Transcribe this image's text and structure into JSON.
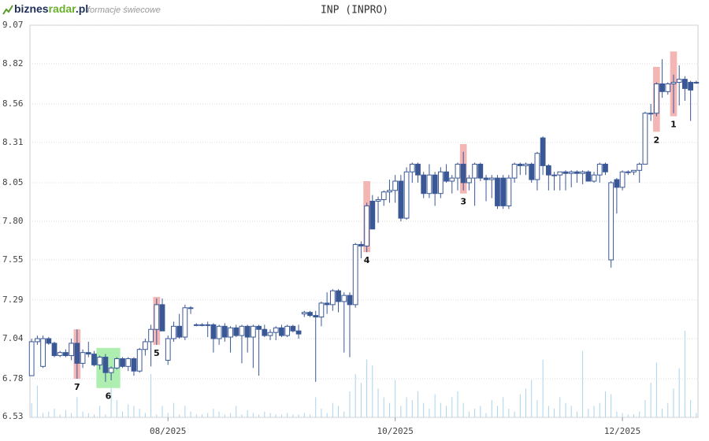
{
  "header": {
    "logo": [
      "biznes",
      "radar",
      ".pl"
    ],
    "subtitle": "formacje świecowe"
  },
  "chart_data": {
    "type": "candlestick",
    "title": "INP (INPRO)",
    "ylim": [
      6.53,
      9.07
    ],
    "yticks": [
      6.53,
      6.78,
      7.04,
      7.29,
      7.55,
      {
        "value": 7.8,
        "label": "7.80"
      },
      8.05,
      8.31,
      8.56,
      8.82,
      9.07
    ],
    "grid": true,
    "xlim": [
      -0.3,
      117.3
    ],
    "xticks": [
      {
        "value": 24,
        "label": "08/2025"
      },
      {
        "value": 64,
        "label": "10/2025"
      },
      {
        "value": 104,
        "label": "12/2025"
      }
    ],
    "colors": {
      "candle": "#3a5896",
      "volume": "#a9d3ee",
      "bear_pattern": "#f4b5b5",
      "bull_pattern": "#aeeeb0"
    },
    "candles": [
      {
        "o": 6.8,
        "h": 7.04,
        "l": 6.8,
        "c": 7.02
      },
      {
        "o": 7.02,
        "h": 7.06,
        "l": 7.0,
        "c": 7.04
      },
      {
        "o": 6.86,
        "h": 7.06,
        "l": 6.85,
        "c": 7.04
      },
      {
        "o": 7.04,
        "h": 7.05,
        "l": 7.0,
        "c": 7.01
      },
      {
        "o": 7.01,
        "h": 7.02,
        "l": 6.92,
        "c": 6.93
      },
      {
        "o": 6.93,
        "h": 6.96,
        "l": 6.92,
        "c": 6.95
      },
      {
        "o": 6.95,
        "h": 6.97,
        "l": 6.92,
        "c": 6.93
      },
      {
        "o": 6.93,
        "h": 7.04,
        "l": 6.9,
        "c": 7.01
      },
      {
        "o": 7.01,
        "h": 7.1,
        "l": 6.78,
        "c": 6.88
      },
      {
        "o": 6.88,
        "h": 6.97,
        "l": 6.85,
        "c": 6.95
      },
      {
        "o": 6.95,
        "h": 7.02,
        "l": 6.92,
        "c": 6.94
      },
      {
        "o": 6.94,
        "h": 6.96,
        "l": 6.86,
        "c": 6.87
      },
      {
        "o": 6.87,
        "h": 6.93,
        "l": 6.84,
        "c": 6.92
      },
      {
        "o": 6.92,
        "h": 6.94,
        "l": 6.76,
        "c": 6.82
      },
      {
        "o": 6.82,
        "h": 6.86,
        "l": 6.77,
        "c": 6.85
      },
      {
        "o": 6.85,
        "h": 6.92,
        "l": 6.84,
        "c": 6.91
      },
      {
        "o": 6.91,
        "h": 6.92,
        "l": 6.85,
        "c": 6.86
      },
      {
        "o": 6.86,
        "h": 6.92,
        "l": 6.83,
        "c": 6.91
      },
      {
        "o": 6.91,
        "h": 6.92,
        "l": 6.8,
        "c": 6.83
      },
      {
        "o": 6.83,
        "h": 6.98,
        "l": 6.82,
        "c": 6.97
      },
      {
        "o": 6.97,
        "h": 7.04,
        "l": 6.93,
        "c": 7.02
      },
      {
        "o": 7.02,
        "h": 7.13,
        "l": 6.86,
        "c": 7.1
      },
      {
        "o": 7.1,
        "h": 7.3,
        "l": 7.0,
        "c": 7.26
      },
      {
        "o": 7.26,
        "h": 7.3,
        "l": 7.09,
        "c": 7.09
      },
      {
        "o": 6.9,
        "h": 7.06,
        "l": 6.87,
        "c": 7.04
      },
      {
        "o": 7.04,
        "h": 7.15,
        "l": 7.02,
        "c": 7.12
      },
      {
        "o": 7.12,
        "h": 7.2,
        "l": 7.04,
        "c": 7.05
      },
      {
        "o": 7.05,
        "h": 7.26,
        "l": 7.03,
        "c": 7.24
      },
      {
        "o": 7.24,
        "h": 7.25,
        "l": 7.2,
        "c": 7.24
      },
      {
        "o": 7.13,
        "h": 7.14,
        "l": 7.12,
        "c": 7.13
      },
      {
        "o": 7.13,
        "h": 7.14,
        "l": 7.12,
        "c": 7.13
      },
      {
        "o": 7.13,
        "h": 7.15,
        "l": 7.05,
        "c": 7.13
      },
      {
        "o": 7.13,
        "h": 7.14,
        "l": 6.95,
        "c": 7.04
      },
      {
        "o": 7.04,
        "h": 7.13,
        "l": 7.0,
        "c": 7.12
      },
      {
        "o": 7.12,
        "h": 7.14,
        "l": 7.02,
        "c": 7.05
      },
      {
        "o": 7.05,
        "h": 7.12,
        "l": 6.95,
        "c": 7.11
      },
      {
        "o": 7.11,
        "h": 7.13,
        "l": 7.05,
        "c": 7.06
      },
      {
        "o": 7.06,
        "h": 7.13,
        "l": 6.88,
        "c": 7.12
      },
      {
        "o": 7.12,
        "h": 7.13,
        "l": 6.95,
        "c": 7.05
      },
      {
        "o": 7.05,
        "h": 7.13,
        "l": 6.85,
        "c": 7.12
      },
      {
        "o": 7.12,
        "h": 7.13,
        "l": 6.8,
        "c": 7.1
      },
      {
        "o": 7.1,
        "h": 7.13,
        "l": 7.05,
        "c": 7.06
      },
      {
        "o": 7.06,
        "h": 7.1,
        "l": 7.03,
        "c": 7.08
      },
      {
        "o": 7.08,
        "h": 7.12,
        "l": 7.03,
        "c": 7.11
      },
      {
        "o": 7.11,
        "h": 7.13,
        "l": 7.05,
        "c": 7.06
      },
      {
        "o": 7.06,
        "h": 7.13,
        "l": 7.05,
        "c": 7.12
      },
      {
        "o": 7.12,
        "h": 7.13,
        "l": 7.08,
        "c": 7.09
      },
      {
        "o": 7.09,
        "h": 7.13,
        "l": 7.04,
        "c": 7.07
      },
      {
        "o": 7.2,
        "h": 7.22,
        "l": 7.18,
        "c": 7.21
      },
      {
        "o": 7.21,
        "h": 7.22,
        "l": 7.18,
        "c": 7.19
      },
      {
        "o": 7.19,
        "h": 7.22,
        "l": 6.76,
        "c": 7.18
      },
      {
        "o": 7.18,
        "h": 7.28,
        "l": 7.12,
        "c": 7.27
      },
      {
        "o": 7.27,
        "h": 7.34,
        "l": 7.2,
        "c": 7.26
      },
      {
        "o": 7.26,
        "h": 7.36,
        "l": 7.22,
        "c": 7.35
      },
      {
        "o": 7.35,
        "h": 7.36,
        "l": 7.21,
        "c": 7.28
      },
      {
        "o": 7.28,
        "h": 7.34,
        "l": 6.95,
        "c": 7.32
      },
      {
        "o": 7.32,
        "h": 7.34,
        "l": 6.92,
        "c": 7.26
      },
      {
        "o": 7.26,
        "h": 7.66,
        "l": 7.24,
        "c": 7.65
      },
      {
        "o": 7.65,
        "h": 7.67,
        "l": 7.56,
        "c": 7.64
      },
      {
        "o": 7.64,
        "h": 7.92,
        "l": 7.6,
        "c": 7.9
      },
      {
        "o": 7.93,
        "h": 7.97,
        "l": 7.75,
        "c": 7.75
      },
      {
        "o": 7.93,
        "h": 7.96,
        "l": 7.79,
        "c": 7.94
      },
      {
        "o": 7.94,
        "h": 8.0,
        "l": 7.9,
        "c": 7.99
      },
      {
        "o": 7.99,
        "h": 8.07,
        "l": 7.92,
        "c": 8.0
      },
      {
        "o": 8.0,
        "h": 8.1,
        "l": 7.92,
        "c": 8.06
      },
      {
        "o": 8.06,
        "h": 8.1,
        "l": 7.8,
        "c": 7.82
      },
      {
        "o": 7.82,
        "h": 8.15,
        "l": 7.81,
        "c": 8.12
      },
      {
        "o": 8.12,
        "h": 8.18,
        "l": 8.05,
        "c": 8.17
      },
      {
        "o": 8.17,
        "h": 8.18,
        "l": 8.05,
        "c": 8.1
      },
      {
        "o": 8.1,
        "h": 8.12,
        "l": 7.95,
        "c": 7.98
      },
      {
        "o": 7.98,
        "h": 8.17,
        "l": 7.95,
        "c": 8.1
      },
      {
        "o": 8.1,
        "h": 8.12,
        "l": 7.9,
        "c": 7.98
      },
      {
        "o": 7.98,
        "h": 8.15,
        "l": 7.95,
        "c": 8.12
      },
      {
        "o": 8.12,
        "h": 8.17,
        "l": 8.05,
        "c": 8.06
      },
      {
        "o": 8.06,
        "h": 8.1,
        "l": 7.98,
        "c": 8.08
      },
      {
        "o": 8.08,
        "h": 8.18,
        "l": 8.0,
        "c": 8.17
      },
      {
        "o": 8.17,
        "h": 8.25,
        "l": 8.0,
        "c": 8.05
      },
      {
        "o": 8.05,
        "h": 8.1,
        "l": 8.0,
        "c": 8.08
      },
      {
        "o": 8.08,
        "h": 8.18,
        "l": 7.9,
        "c": 8.17
      },
      {
        "o": 8.17,
        "h": 8.18,
        "l": 8.06,
        "c": 8.08
      },
      {
        "o": 8.08,
        "h": 8.1,
        "l": 7.93,
        "c": 8.07
      },
      {
        "o": 8.07,
        "h": 8.1,
        "l": 7.95,
        "c": 8.08
      },
      {
        "o": 8.08,
        "h": 8.1,
        "l": 7.88,
        "c": 7.9
      },
      {
        "o": 8.08,
        "h": 8.1,
        "l": 7.88,
        "c": 7.9
      },
      {
        "o": 7.9,
        "h": 8.1,
        "l": 7.88,
        "c": 8.08
      },
      {
        "o": 8.08,
        "h": 8.18,
        "l": 8.05,
        "c": 8.17
      },
      {
        "o": 8.17,
        "h": 8.18,
        "l": 8.1,
        "c": 8.16
      },
      {
        "o": 8.16,
        "h": 8.18,
        "l": 8.1,
        "c": 8.17
      },
      {
        "o": 8.17,
        "h": 8.18,
        "l": 8.05,
        "c": 8.07
      },
      {
        "o": 8.07,
        "h": 8.25,
        "l": 8.0,
        "c": 8.24
      },
      {
        "o": 8.34,
        "h": 8.35,
        "l": 8.1,
        "c": 8.16
      },
      {
        "o": 8.16,
        "h": 8.17,
        "l": 8.0,
        "c": 8.1
      },
      {
        "o": 8.1,
        "h": 8.12,
        "l": 8.0,
        "c": 8.1
      },
      {
        "o": 8.1,
        "h": 8.12,
        "l": 8.0,
        "c": 8.12
      },
      {
        "o": 8.12,
        "h": 8.13,
        "l": 8.0,
        "c": 8.11
      },
      {
        "o": 8.11,
        "h": 8.13,
        "l": 8.02,
        "c": 8.12
      },
      {
        "o": 8.12,
        "h": 8.13,
        "l": 8.05,
        "c": 8.11
      },
      {
        "o": 8.11,
        "h": 8.13,
        "l": 8.04,
        "c": 8.12
      },
      {
        "o": 8.12,
        "h": 8.13,
        "l": 8.06,
        "c": 8.06
      },
      {
        "o": 8.06,
        "h": 8.12,
        "l": 8.05,
        "c": 8.1
      },
      {
        "o": 8.1,
        "h": 8.18,
        "l": 8.05,
        "c": 8.17
      },
      {
        "o": 8.17,
        "h": 8.18,
        "l": 8.1,
        "c": 8.12
      },
      {
        "o": 7.55,
        "h": 8.06,
        "l": 7.5,
        "c": 8.05
      },
      {
        "o": 8.07,
        "h": 8.08,
        "l": 7.85,
        "c": 8.02
      },
      {
        "o": 8.02,
        "h": 8.13,
        "l": 8.0,
        "c": 8.12
      },
      {
        "o": 8.12,
        "h": 8.13,
        "l": 8.1,
        "c": 8.12
      },
      {
        "o": 8.12,
        "h": 8.13,
        "l": 8.1,
        "c": 8.13
      },
      {
        "o": 8.13,
        "h": 8.18,
        "l": 8.05,
        "c": 8.17
      },
      {
        "o": 8.17,
        "h": 8.51,
        "l": 8.17,
        "c": 8.5
      },
      {
        "o": 8.5,
        "h": 8.56,
        "l": 8.45,
        "c": 8.5
      },
      {
        "o": 8.5,
        "h": 8.7,
        "l": 8.48,
        "c": 8.69
      },
      {
        "o": 8.69,
        "h": 8.85,
        "l": 8.6,
        "c": 8.64
      },
      {
        "o": 8.64,
        "h": 8.7,
        "l": 8.62,
        "c": 8.69
      },
      {
        "o": 8.69,
        "h": 8.75,
        "l": 8.5,
        "c": 8.7
      },
      {
        "o": 8.7,
        "h": 8.81,
        "l": 8.55,
        "c": 8.72
      },
      {
        "o": 8.72,
        "h": 8.74,
        "l": 8.58,
        "c": 8.66
      },
      {
        "o": 8.7,
        "h": 8.71,
        "l": 8.45,
        "c": 8.65
      },
      {
        "o": 8.7,
        "h": 8.71,
        "l": 8.69,
        "c": 8.7
      }
    ],
    "volume": [
      10,
      22,
      3,
      4,
      6,
      2,
      5,
      3,
      14,
      4,
      3,
      2,
      8,
      2,
      30,
      12,
      4,
      9,
      8,
      6,
      3,
      30,
      2,
      8,
      3,
      10,
      2,
      8,
      4,
      2,
      2,
      3,
      6,
      4,
      2,
      3,
      8,
      2,
      5,
      3,
      2,
      4,
      3,
      2,
      2,
      3,
      2,
      2,
      3,
      2,
      14,
      6,
      3,
      10,
      8,
      4,
      18,
      30,
      24,
      40,
      36,
      20,
      14,
      10,
      26,
      8,
      14,
      12,
      18,
      10,
      6,
      16,
      10,
      8,
      14,
      18,
      10,
      4,
      6,
      8,
      3,
      12,
      8,
      14,
      6,
      4,
      16,
      20,
      26,
      12,
      40,
      8,
      6,
      14,
      10,
      8,
      4,
      46,
      6,
      8,
      10,
      18,
      16,
      4,
      3,
      2,
      2,
      4,
      12,
      24,
      38,
      6,
      10,
      20,
      34,
      60,
      12,
      3
    ],
    "annotations": [
      {
        "label": "7",
        "start": 8,
        "end": 8,
        "low": 6.78,
        "high": 7.1,
        "kind": "bear_pattern"
      },
      {
        "label": "6",
        "start": 12,
        "end": 15,
        "low": 6.72,
        "high": 6.98,
        "kind": "bull_pattern"
      },
      {
        "label": "5",
        "start": 22,
        "end": 22,
        "low": 7.0,
        "high": 7.31,
        "kind": "bear_pattern"
      },
      {
        "label": "4",
        "start": 59,
        "end": 59,
        "low": 7.6,
        "high": 8.06,
        "kind": "bear_pattern"
      },
      {
        "label": "3",
        "start": 76,
        "end": 76,
        "low": 7.98,
        "high": 8.3,
        "kind": "bear_pattern"
      },
      {
        "label": "2",
        "start": 110,
        "end": 110,
        "low": 8.38,
        "high": 8.8,
        "kind": "bear_pattern"
      },
      {
        "label": "1",
        "start": 113,
        "end": 113,
        "low": 8.48,
        "high": 8.9,
        "kind": "bear_pattern"
      }
    ]
  }
}
